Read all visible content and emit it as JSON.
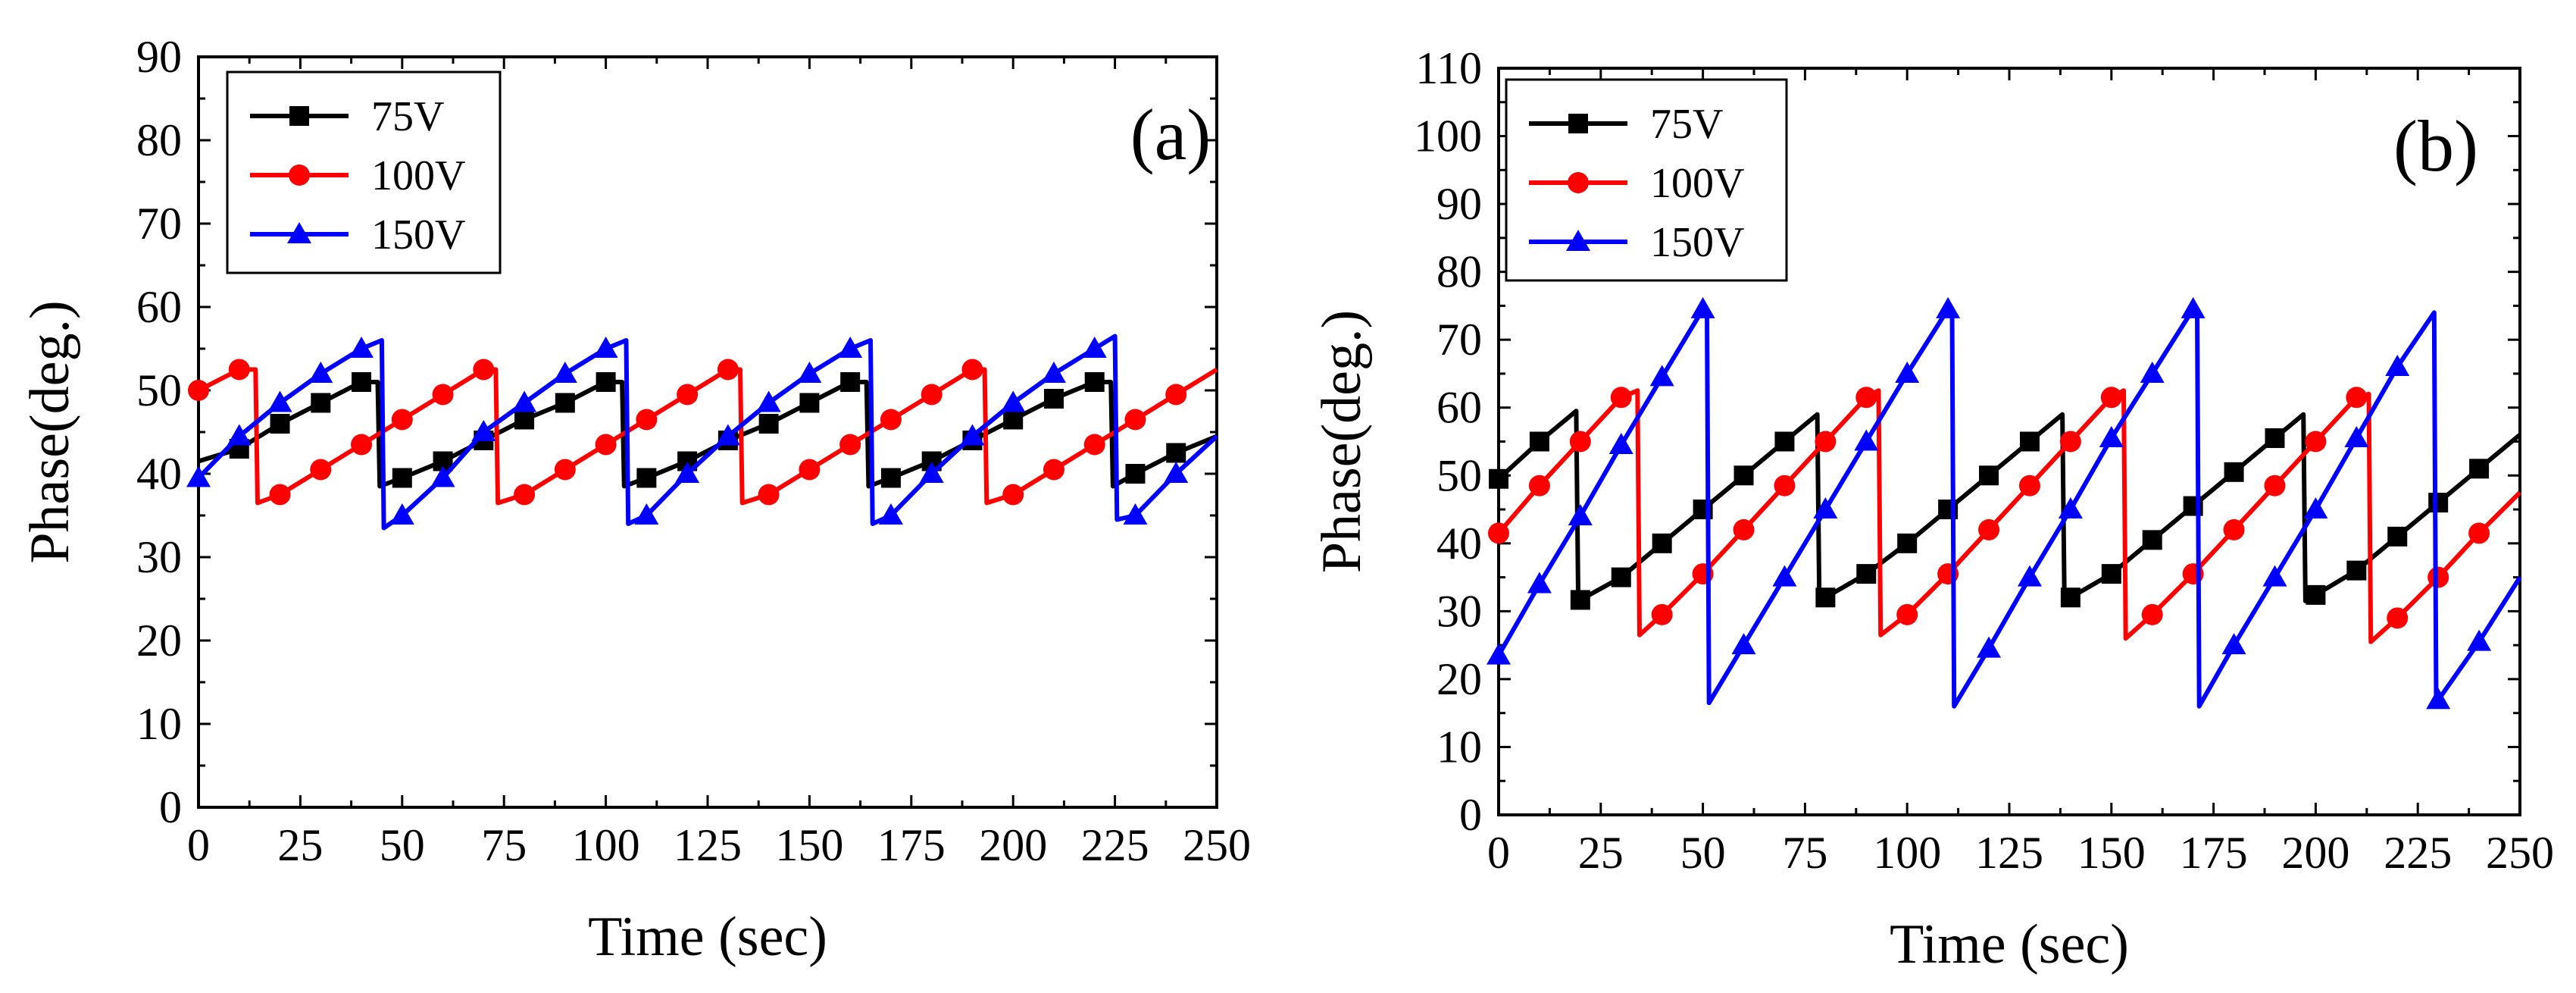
{
  "chart_data": [
    {
      "type": "line",
      "panel_label": "(a)",
      "xlabel": "Time (sec)",
      "ylabel": "Phase(deg.)",
      "xlim": [
        0,
        250
      ],
      "ylim": [
        0,
        90
      ],
      "xticks": [
        "0",
        "25",
        "50",
        "75",
        "100",
        "125",
        "150",
        "175",
        "200",
        "225",
        "250"
      ],
      "yticks": [
        "0",
        "10",
        "20",
        "30",
        "40",
        "50",
        "60",
        "70",
        "80",
        "90"
      ],
      "grid": false,
      "legend_position": "top-left",
      "series": [
        {
          "name": "75V",
          "color": "#000000",
          "marker": "square",
          "points": [
            [
              0,
              41.5
            ],
            [
              10,
              43
            ],
            [
              20,
              46
            ],
            [
              30,
              48.5
            ],
            [
              40,
              51
            ],
            [
              44,
              51
            ],
            [
              44.5,
              38.5
            ],
            [
              50,
              39.5
            ],
            [
              60,
              41.5
            ],
            [
              70,
              44
            ],
            [
              80,
              46.5
            ],
            [
              90,
              48.5
            ],
            [
              100,
              51
            ],
            [
              104,
              51
            ],
            [
              104.5,
              38.5
            ],
            [
              110,
              39.5
            ],
            [
              120,
              41.5
            ],
            [
              130,
              44
            ],
            [
              140,
              46
            ],
            [
              150,
              48.5
            ],
            [
              160,
              51
            ],
            [
              164,
              51
            ],
            [
              164.5,
              38.5
            ],
            [
              170,
              39.5
            ],
            [
              180,
              41.5
            ],
            [
              190,
              44
            ],
            [
              200,
              46.5
            ],
            [
              210,
              49
            ],
            [
              220,
              51
            ],
            [
              224,
              51
            ],
            [
              224.5,
              38.5
            ],
            [
              230,
              40
            ],
            [
              240,
              42.5
            ],
            [
              250,
              44.5
            ]
          ],
          "marker_x": [
            10,
            20,
            30,
            40,
            50,
            60,
            70,
            80,
            90,
            100,
            110,
            120,
            130,
            140,
            150,
            160,
            170,
            180,
            190,
            200,
            210,
            220,
            230,
            240
          ]
        },
        {
          "name": "100V",
          "color": "#ff0000",
          "marker": "circle",
          "points": [
            [
              0,
              50
            ],
            [
              10,
              52.5
            ],
            [
              14,
              52.5
            ],
            [
              14.5,
              36.5
            ],
            [
              20,
              37.5
            ],
            [
              30,
              40.5
            ],
            [
              40,
              43.5
            ],
            [
              50,
              46.5
            ],
            [
              60,
              49.5
            ],
            [
              70,
              52.5
            ],
            [
              73,
              52.5
            ],
            [
              73.5,
              36.5
            ],
            [
              80,
              37.5
            ],
            [
              90,
              40.5
            ],
            [
              100,
              43.5
            ],
            [
              110,
              46.5
            ],
            [
              120,
              49.5
            ],
            [
              130,
              52.5
            ],
            [
              133,
              52.5
            ],
            [
              133.5,
              36.5
            ],
            [
              140,
              37.5
            ],
            [
              150,
              40.5
            ],
            [
              160,
              43.5
            ],
            [
              170,
              46.5
            ],
            [
              180,
              49.5
            ],
            [
              190,
              52.5
            ],
            [
              193,
              52.5
            ],
            [
              193.5,
              36.5
            ],
            [
              200,
              37.5
            ],
            [
              210,
              40.5
            ],
            [
              220,
              43.5
            ],
            [
              230,
              46.5
            ],
            [
              240,
              49.5
            ],
            [
              250,
              52.5
            ]
          ],
          "marker_x": [
            0,
            10,
            20,
            30,
            40,
            50,
            60,
            70,
            80,
            90,
            100,
            110,
            120,
            130,
            140,
            150,
            160,
            170,
            180,
            190,
            200,
            210,
            220,
            230,
            240
          ]
        },
        {
          "name": "150V",
          "color": "#0000ff",
          "marker": "triangle",
          "points": [
            [
              0,
              39.5
            ],
            [
              10,
              44.5
            ],
            [
              20,
              48.5
            ],
            [
              30,
              52
            ],
            [
              40,
              55
            ],
            [
              45,
              56
            ],
            [
              45.5,
              33.5
            ],
            [
              50,
              35
            ],
            [
              60,
              39.5
            ],
            [
              70,
              45
            ],
            [
              80,
              48.5
            ],
            [
              90,
              52
            ],
            [
              100,
              55
            ],
            [
              105,
              56
            ],
            [
              105.5,
              34
            ],
            [
              110,
              35
            ],
            [
              120,
              40
            ],
            [
              130,
              44.5
            ],
            [
              140,
              48.5
            ],
            [
              150,
              52
            ],
            [
              160,
              55
            ],
            [
              165,
              56
            ],
            [
              165.5,
              34
            ],
            [
              170,
              35
            ],
            [
              180,
              40
            ],
            [
              190,
              44.5
            ],
            [
              200,
              48.5
            ],
            [
              210,
              52
            ],
            [
              220,
              55
            ],
            [
              225,
              56.5
            ],
            [
              225.5,
              34.5
            ],
            [
              230,
              35
            ],
            [
              240,
              40
            ],
            [
              250,
              44.5
            ]
          ],
          "marker_x": [
            0,
            10,
            20,
            30,
            40,
            50,
            60,
            70,
            80,
            90,
            100,
            110,
            120,
            130,
            140,
            150,
            160,
            170,
            180,
            190,
            200,
            210,
            220,
            230,
            240
          ]
        }
      ]
    },
    {
      "type": "line",
      "panel_label": "(b)",
      "xlabel": "Time (sec)",
      "ylabel": "Phase(deg.)",
      "xlim": [
        0,
        250
      ],
      "ylim": [
        0,
        110
      ],
      "xticks": [
        "0",
        "25",
        "50",
        "75",
        "100",
        "125",
        "150",
        "175",
        "200",
        "225",
        "250"
      ],
      "yticks": [
        "0",
        "10",
        "20",
        "30",
        "40",
        "50",
        "60",
        "70",
        "80",
        "90",
        "100",
        "110"
      ],
      "grid": false,
      "legend_position": "top-left",
      "series": [
        {
          "name": "75V",
          "color": "#000000",
          "marker": "square",
          "points": [
            [
              0,
              49.5
            ],
            [
              10,
              55
            ],
            [
              19,
              59.5
            ],
            [
              19.5,
              31.5
            ],
            [
              30,
              35
            ],
            [
              40,
              40
            ],
            [
              50,
              45
            ],
            [
              60,
              50
            ],
            [
              70,
              55
            ],
            [
              78,
              59
            ],
            [
              78.5,
              31.5
            ],
            [
              90,
              35.5
            ],
            [
              100,
              40
            ],
            [
              110,
              45
            ],
            [
              120,
              50
            ],
            [
              130,
              55
            ],
            [
              138,
              59
            ],
            [
              138.5,
              31.5
            ],
            [
              150,
              35.5
            ],
            [
              160,
              40.5
            ],
            [
              170,
              45.5
            ],
            [
              180,
              50.5
            ],
            [
              190,
              55.5
            ],
            [
              197,
              59
            ],
            [
              197.5,
              31.5
            ],
            [
              210,
              36
            ],
            [
              220,
              41
            ],
            [
              230,
              46
            ],
            [
              240,
              51
            ],
            [
              250,
              56
            ]
          ],
          "marker_x": [
            0,
            10,
            20,
            30,
            40,
            50,
            60,
            70,
            80,
            90,
            100,
            110,
            120,
            130,
            140,
            150,
            160,
            170,
            180,
            190,
            200,
            210,
            220,
            230,
            240
          ]
        },
        {
          "name": "100V",
          "color": "#ff0000",
          "marker": "circle",
          "points": [
            [
              0,
              41.5
            ],
            [
              10,
              48.5
            ],
            [
              20,
              55
            ],
            [
              30,
              61.5
            ],
            [
              34,
              62.5
            ],
            [
              34.5,
              26.5
            ],
            [
              40,
              29.5
            ],
            [
              50,
              35.5
            ],
            [
              60,
              42
            ],
            [
              70,
              48.5
            ],
            [
              80,
              55
            ],
            [
              90,
              61.5
            ],
            [
              93,
              62.5
            ],
            [
              93.5,
              26.5
            ],
            [
              100,
              29.5
            ],
            [
              110,
              35.5
            ],
            [
              120,
              42
            ],
            [
              130,
              48.5
            ],
            [
              140,
              55
            ],
            [
              150,
              61.5
            ],
            [
              153,
              62.5
            ],
            [
              153.5,
              26
            ],
            [
              160,
              29.5
            ],
            [
              170,
              35.5
            ],
            [
              180,
              42
            ],
            [
              190,
              48.5
            ],
            [
              200,
              55
            ],
            [
              210,
              61.5
            ],
            [
              213,
              62
            ],
            [
              213.5,
              25.5
            ],
            [
              220,
              29
            ],
            [
              230,
              35
            ],
            [
              240,
              41.5
            ],
            [
              250,
              47.5
            ]
          ],
          "marker_x": [
            0,
            10,
            20,
            30,
            40,
            50,
            60,
            70,
            80,
            90,
            100,
            110,
            120,
            130,
            140,
            150,
            160,
            170,
            180,
            190,
            200,
            210,
            220,
            230,
            240
          ]
        },
        {
          "name": "150V",
          "color": "#0000ff",
          "marker": "triangle",
          "points": [
            [
              0,
              23.5
            ],
            [
              10,
              34
            ],
            [
              20,
              44
            ],
            [
              30,
              54.5
            ],
            [
              40,
              64.5
            ],
            [
              50,
              74.5
            ],
            [
              51,
              74.5
            ],
            [
              51.5,
              16.5
            ],
            [
              60,
              25
            ],
            [
              70,
              35
            ],
            [
              80,
              45
            ],
            [
              90,
              55
            ],
            [
              100,
              65
            ],
            [
              110,
              74.5
            ],
            [
              111,
              74.5
            ],
            [
              111.5,
              16
            ],
            [
              120,
              24.5
            ],
            [
              130,
              35
            ],
            [
              140,
              45
            ],
            [
              150,
              55.5
            ],
            [
              160,
              65
            ],
            [
              170,
              74.5
            ],
            [
              171,
              74.5
            ],
            [
              171.5,
              16
            ],
            [
              180,
              25
            ],
            [
              190,
              35
            ],
            [
              200,
              45
            ],
            [
              210,
              55.5
            ],
            [
              220,
              66
            ],
            [
              229,
              74
            ],
            [
              229.5,
              16.5
            ],
            [
              240,
              25.5
            ],
            [
              250,
              35
            ]
          ],
          "marker_x": [
            0,
            10,
            20,
            30,
            40,
            50,
            60,
            70,
            80,
            90,
            100,
            110,
            120,
            130,
            140,
            150,
            160,
            170,
            180,
            190,
            200,
            210,
            220,
            230,
            240
          ]
        }
      ]
    }
  ]
}
